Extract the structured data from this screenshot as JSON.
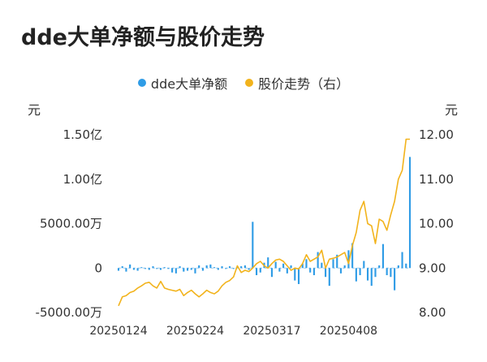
{
  "chart_data": {
    "type": "bar+line",
    "title": "dde大单净额与股价走势",
    "legend": [
      {
        "name": "dde大单净额",
        "color": "#2f9ce6"
      },
      {
        "name": "股价走势（右）",
        "color": "#f2b31c"
      }
    ],
    "left_axis": {
      "unit": "元",
      "ticks": [
        {
          "value": 150000000,
          "label": "1.50亿"
        },
        {
          "value": 100000000,
          "label": "1.00亿"
        },
        {
          "value": 50000000,
          "label": "5000.00万"
        },
        {
          "value": 0,
          "label": "0"
        },
        {
          "value": -50000000,
          "label": "-5000.00万"
        }
      ],
      "range": [
        -50000000,
        150000000
      ]
    },
    "right_axis": {
      "unit": "元",
      "ticks": [
        "12.00",
        "11.00",
        "10.00",
        "9.00",
        "8.00"
      ],
      "range": [
        8.0,
        12.0
      ]
    },
    "x_ticks": [
      {
        "index": 0,
        "label": "20250124"
      },
      {
        "index": 20,
        "label": "20250224"
      },
      {
        "index": 40,
        "label": "20250317"
      },
      {
        "index": 60,
        "label": "20250408"
      }
    ],
    "series": [
      {
        "name": "dde大单净额",
        "type": "bar",
        "color": "#2f9ce6",
        "values": [
          -3000000,
          2000000,
          -4000000,
          4000000,
          -2000000,
          -3000000,
          1000000,
          -1000000,
          -2000000,
          2000000,
          -1000000,
          -2000000,
          1000000,
          -1000000,
          -5000000,
          -6000000,
          2000000,
          -4000000,
          -3000000,
          -2000000,
          -6000000,
          3000000,
          -3000000,
          3000000,
          4000000,
          1000000,
          -2000000,
          2000000,
          -1000000,
          2000000,
          -1000000,
          1000000,
          2000000,
          3000000,
          -2000000,
          52000000,
          -8000000,
          -5000000,
          6000000,
          12000000,
          -10000000,
          7000000,
          -4000000,
          5000000,
          -6000000,
          3000000,
          -14000000,
          -18000000,
          5000000,
          10000000,
          -5000000,
          -8000000,
          18000000,
          6000000,
          -10000000,
          -20000000,
          10000000,
          15000000,
          -6000000,
          3000000,
          20000000,
          28000000,
          -15000000,
          -8000000,
          8000000,
          -14000000,
          -20000000,
          -10000000,
          3000000,
          27000000,
          -8000000,
          -10000000,
          -25000000,
          3000000,
          18000000,
          5000000,
          125000000
        ]
      },
      {
        "name": "股价走势（右）",
        "type": "line",
        "color": "#f2b31c",
        "values": [
          8.15,
          8.35,
          8.38,
          8.45,
          8.48,
          8.55,
          8.6,
          8.66,
          8.68,
          8.6,
          8.55,
          8.7,
          8.55,
          8.52,
          8.5,
          8.48,
          8.52,
          8.38,
          8.45,
          8.5,
          8.42,
          8.35,
          8.42,
          8.5,
          8.45,
          8.42,
          8.48,
          8.6,
          8.68,
          8.72,
          8.8,
          9.05,
          8.9,
          8.95,
          8.92,
          9.0,
          9.1,
          9.15,
          9.05,
          9.0,
          9.1,
          9.18,
          9.2,
          9.15,
          9.05,
          8.95,
          9.0,
          8.98,
          9.1,
          9.3,
          9.15,
          9.2,
          9.25,
          9.4,
          9.0,
          9.2,
          9.22,
          9.25,
          9.3,
          9.35,
          9.1,
          9.5,
          9.8,
          10.3,
          10.5,
          10.0,
          9.95,
          9.55,
          10.1,
          10.05,
          9.85,
          10.2,
          10.5,
          11.0,
          11.2,
          11.9,
          11.9
        ]
      }
    ]
  }
}
